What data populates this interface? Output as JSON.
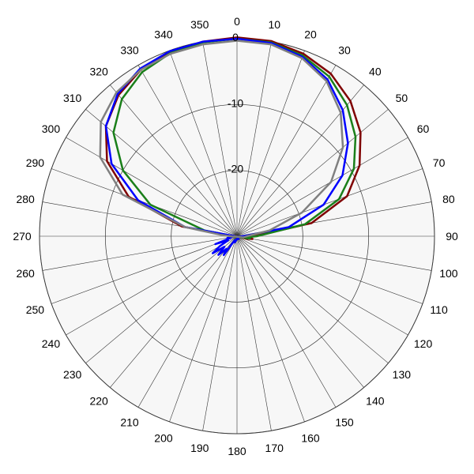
{
  "chart_data": {
    "type": "line",
    "subtype": "polar",
    "title": "",
    "angle_unit": "degrees",
    "angle_direction": "clockwise",
    "angle_zero": "top",
    "angle_ticks": [
      0,
      10,
      20,
      30,
      40,
      50,
      60,
      70,
      80,
      90,
      100,
      110,
      120,
      130,
      140,
      150,
      160,
      170,
      180,
      190,
      200,
      210,
      220,
      230,
      240,
      250,
      260,
      270,
      280,
      290,
      300,
      310,
      320,
      330,
      340,
      350
    ],
    "radial_range": [
      -30,
      0
    ],
    "radial_ticks": [
      0,
      -10,
      -20
    ],
    "radial_tick_labels": [
      "0",
      "-10",
      "-20"
    ],
    "grid": true,
    "legend": "none",
    "series": [
      {
        "color": "#7f0000",
        "angles": [
          0,
          10,
          20,
          30,
          40,
          50,
          60,
          70,
          80,
          90,
          95,
          100,
          105,
          110,
          120,
          150,
          180,
          210,
          240,
          255,
          260,
          270,
          280,
          290,
          300,
          310,
          320,
          330,
          340,
          350
        ],
        "values": [
          0.2,
          0.1,
          -0.5,
          -1.5,
          -3.2,
          -5.5,
          -8.5,
          -12.2,
          -18.5,
          -27.5,
          -28.2,
          -27.6,
          -28.5,
          -29.5,
          -29.8,
          -29.9,
          -29.9,
          -29.9,
          -29.8,
          -29.7,
          -29.8,
          -29.6,
          -21.5,
          -12.5,
          -7.2,
          -4.0,
          -2.0,
          -0.8,
          -0.2,
          0.0
        ]
      },
      {
        "color": "#1a7f1a",
        "angles": [
          0,
          10,
          20,
          30,
          40,
          50,
          60,
          70,
          80,
          90,
          95,
          100,
          110,
          120,
          150,
          180,
          210,
          240,
          255,
          260,
          270,
          280,
          290,
          300,
          310,
          320,
          330,
          340,
          350
        ],
        "values": [
          0.0,
          -0.1,
          -0.8,
          -2.0,
          -4.0,
          -6.5,
          -9.5,
          -13.5,
          -19.5,
          -27.0,
          -28.3,
          -28.0,
          -29.5,
          -29.8,
          -29.9,
          -29.9,
          -29.9,
          -29.8,
          -29.6,
          -29.7,
          -29.5,
          -25.0,
          -16.0,
          -10.0,
          -5.5,
          -2.8,
          -1.2,
          -0.4,
          -0.1
        ]
      },
      {
        "color": "#0000ff",
        "angles": [
          0,
          10,
          20,
          30,
          40,
          50,
          60,
          70,
          80,
          90,
          95,
          100,
          110,
          120,
          140,
          150,
          170,
          180,
          190,
          200,
          210,
          215,
          220,
          225,
          230,
          235,
          240,
          245,
          250,
          255,
          260,
          265,
          270,
          280,
          290,
          300,
          310,
          320,
          330,
          340,
          350
        ],
        "values": [
          0.0,
          -0.2,
          -1.0,
          -2.5,
          -5.0,
          -8.0,
          -11.5,
          -16.0,
          -22.0,
          -29.0,
          -29.4,
          -29.6,
          -29.8,
          -29.9,
          -29.8,
          -29.5,
          -29.7,
          -29.6,
          -29.4,
          -29.0,
          -29.3,
          -26.5,
          -27.5,
          -26.0,
          -27.5,
          -25.5,
          -27.0,
          -28.5,
          -26.5,
          -29.0,
          -28.5,
          -29.5,
          -29.7,
          -22.0,
          -14.0,
          -8.0,
          -4.0,
          -1.8,
          -0.6,
          -0.1,
          0.0
        ]
      },
      {
        "color": "#808080",
        "angles": [
          0,
          10,
          20,
          30,
          40,
          50,
          60,
          70,
          80,
          90,
          100,
          120,
          150,
          180,
          210,
          240,
          250,
          260,
          265,
          270,
          275,
          280,
          290,
          300,
          310,
          320,
          330,
          340,
          350
        ],
        "values": [
          -0.3,
          -0.4,
          -1.2,
          -2.8,
          -5.5,
          -9.0,
          -13.5,
          -19.5,
          -25.0,
          -28.5,
          -29.0,
          -29.8,
          -29.9,
          -29.9,
          -29.9,
          -29.9,
          -29.8,
          -29.7,
          -29.4,
          -29.0,
          -27.5,
          -22.0,
          -11.5,
          -6.0,
          -3.0,
          -1.5,
          -0.8,
          -0.5,
          -0.4
        ]
      }
    ]
  }
}
